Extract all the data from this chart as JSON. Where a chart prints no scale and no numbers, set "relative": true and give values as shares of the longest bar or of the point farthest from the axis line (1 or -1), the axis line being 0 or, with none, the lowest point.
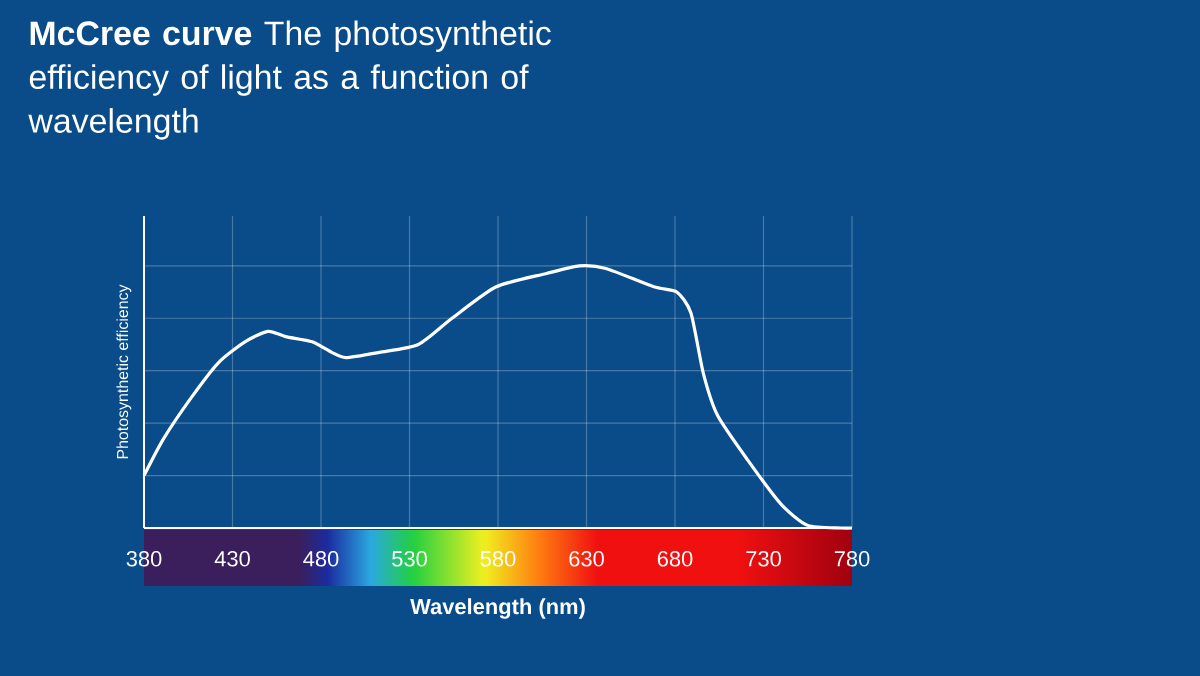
{
  "chart_data": {
    "type": "line",
    "title": "**McCree curve** The photosynthetic efficiency of light as a function of wavelength",
    "xlabel": "Wavelength (nm)",
    "ylabel": "Photosynthetic efficiency",
    "relative": true,
    "grid": true,
    "xlim": [
      380,
      780
    ],
    "xticks": [
      380,
      430,
      480,
      530,
      580,
      630,
      680,
      730,
      780
    ],
    "x": [
      380,
      391,
      407,
      422,
      437,
      450,
      460,
      475,
      486,
      494,
      513,
      535,
      554,
      579,
      607,
      626,
      641,
      668,
      681,
      689,
      696,
      704,
      721,
      740,
      755,
      774,
      780
    ],
    "series": [
      {
        "color": "#ffffff",
        "values": [
          0.2,
          0.34,
          0.5,
          0.63,
          0.71,
          0.75,
          0.73,
          0.71,
          0.67,
          0.65,
          0.67,
          0.7,
          0.8,
          0.92,
          0.97,
          1.0,
          0.99,
          0.92,
          0.9,
          0.82,
          0.59,
          0.43,
          0.26,
          0.09,
          0.01,
          0,
          0
        ]
      }
    ]
  }
}
